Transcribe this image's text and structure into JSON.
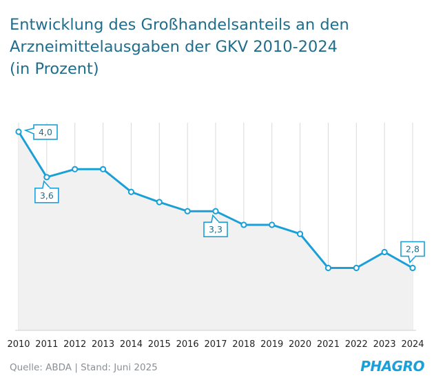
{
  "title_lines": [
    "Entwicklung des Großhandelsanteils an den",
    "Arzneimittelausgaben der GKV 2010-2024",
    "(in Prozent)"
  ],
  "source": "Quelle: ABDA | Stand: Juni 2025",
  "logo_text": "PHAGRO",
  "colors": {
    "title": "#1f6d8c",
    "line": "#1a9fd6",
    "area": "#f1f1f1",
    "grid": "#d9d9d9",
    "logo": "#1aa0d8"
  },
  "chart_data": {
    "type": "line",
    "x": [
      "2010",
      "2011",
      "2012",
      "2013",
      "2014",
      "2015",
      "2016",
      "2017",
      "2018",
      "2019",
      "2020",
      "2021",
      "2022",
      "2023",
      "2024"
    ],
    "series": [
      {
        "values": [
          4.0,
          3.6,
          3.67,
          3.67,
          3.47,
          3.38,
          3.3,
          3.3,
          3.18,
          3.18,
          3.1,
          2.8,
          2.8,
          2.94,
          2.8
        ]
      }
    ],
    "annotations": [
      {
        "index": 0,
        "label": "4,0"
      },
      {
        "index": 1,
        "label": "3,6"
      },
      {
        "index": 7,
        "label": "3,3"
      },
      {
        "index": 14,
        "label": "2,8"
      }
    ],
    "ylim": [
      2.25,
      4.0
    ],
    "grid": "vertical",
    "area_fill": true
  }
}
